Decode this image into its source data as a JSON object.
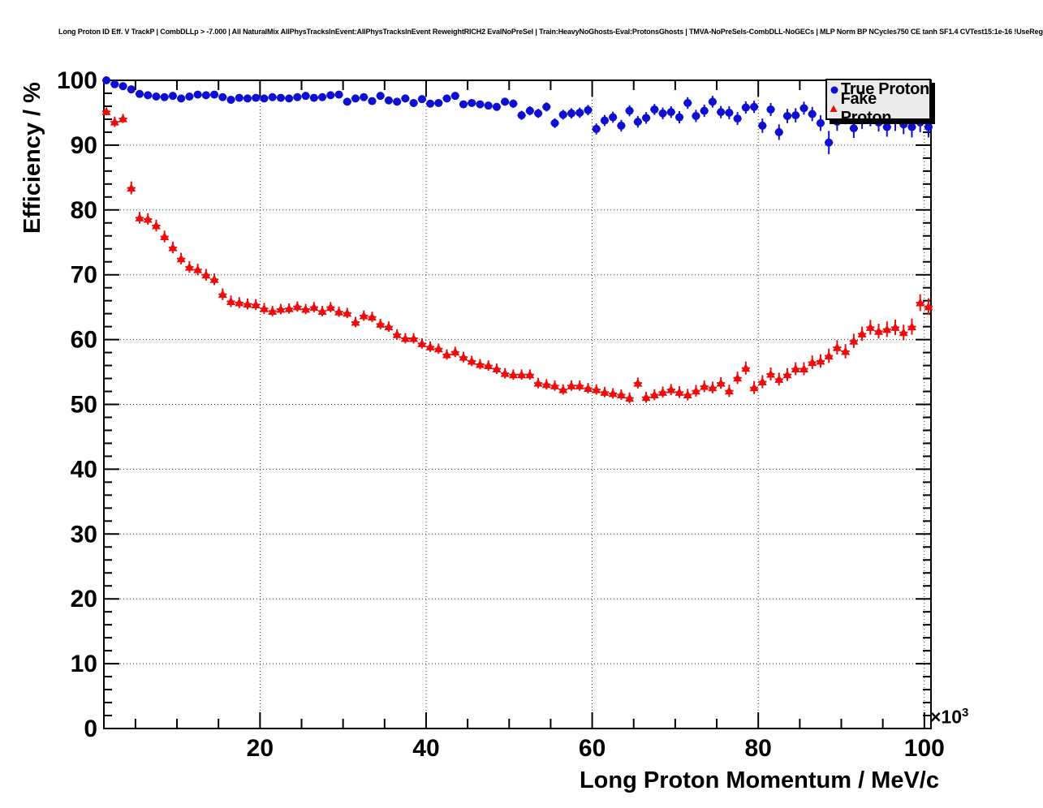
{
  "header": {
    "title": "Long Proton ID Eff. V TrackP | CombDLLp > -7.000 | All NaturalMix AllPhysTracksInEvent:AllPhysTracksInEvent ReweightRICH2 EvalNoPreSel | Train:HeavyNoGhosts-Eval:ProtonsGhosts | TMVA-NoPreSels-CombDLL-NoGECs | MLP Norm BP NCycles750 CE tanh SF1.4 CVTest15:1e-16 !UseReg"
  },
  "legend": {
    "entries": [
      {
        "label": "True Proton",
        "marker": "circle",
        "color": "#0f0fd2"
      },
      {
        "label": "Fake Proton",
        "marker": "triangle",
        "color": "#ed0c0c"
      }
    ]
  },
  "chart_data": {
    "type": "scatter",
    "title": "Long Proton ID Eff. V TrackP",
    "xlabel": "Long Proton Momentum / MeV/c",
    "ylabel": "Efficiency / %",
    "x_scale": {
      "base": "×10",
      "exp": "3"
    },
    "xlim": [
      1.2,
      100.8
    ],
    "ylim": [
      0,
      100
    ],
    "grid": true,
    "legend_position": "top-right",
    "x_major_ticks": [
      {
        "v": 20,
        "label": "20"
      },
      {
        "v": 40,
        "label": "40"
      },
      {
        "v": 60,
        "label": "60"
      },
      {
        "v": 80,
        "label": "80"
      },
      {
        "v": 100,
        "label": "100"
      }
    ],
    "x_minor_step": 5,
    "y_major_ticks": [
      {
        "v": 0,
        "label": "0"
      },
      {
        "v": 10,
        "label": "10"
      },
      {
        "v": 20,
        "label": "20"
      },
      {
        "v": 30,
        "label": "30"
      },
      {
        "v": 40,
        "label": "40"
      },
      {
        "v": 50,
        "label": "50"
      },
      {
        "v": 60,
        "label": "60"
      },
      {
        "v": 70,
        "label": "70"
      },
      {
        "v": 80,
        "label": "80"
      },
      {
        "v": 90,
        "label": "90"
      },
      {
        "v": 100,
        "label": "100"
      }
    ],
    "y_minor_step": 2,
    "xerr": 0.5,
    "x": [
      1.5,
      2.5,
      3.5,
      4.5,
      5.5,
      6.5,
      7.5,
      8.5,
      9.5,
      10.5,
      11.5,
      12.5,
      13.5,
      14.5,
      15.5,
      16.5,
      17.5,
      18.5,
      19.5,
      20.5,
      21.5,
      22.5,
      23.5,
      24.5,
      25.5,
      26.5,
      27.5,
      28.5,
      29.5,
      30.5,
      31.5,
      32.5,
      33.5,
      34.5,
      35.5,
      36.5,
      37.5,
      38.5,
      39.5,
      40.5,
      41.5,
      42.5,
      43.5,
      44.5,
      45.5,
      46.5,
      47.5,
      48.5,
      49.5,
      50.5,
      51.5,
      52.5,
      53.5,
      54.5,
      55.5,
      56.5,
      57.5,
      58.5,
      59.5,
      60.5,
      61.5,
      62.5,
      63.5,
      64.5,
      65.5,
      66.5,
      67.5,
      68.5,
      69.5,
      70.5,
      71.5,
      72.5,
      73.5,
      74.5,
      75.5,
      76.5,
      77.5,
      78.5,
      79.5,
      80.5,
      81.5,
      82.5,
      83.5,
      84.5,
      85.5,
      86.5,
      87.5,
      88.5,
      89.5,
      90.5,
      91.5,
      92.5,
      93.5,
      94.5,
      95.5,
      96.5,
      97.5,
      98.5,
      99.5,
      100.5
    ],
    "series": [
      {
        "name": "True Proton",
        "marker": "circle",
        "color": "#0f0fd2",
        "values": [
          100.0,
          99.4,
          99.1,
          98.6,
          97.9,
          97.7,
          97.5,
          97.4,
          97.6,
          97.2,
          97.5,
          97.8,
          97.7,
          97.8,
          97.4,
          97.0,
          97.3,
          97.2,
          97.3,
          97.2,
          97.4,
          97.3,
          97.2,
          97.4,
          97.6,
          97.3,
          97.4,
          97.7,
          97.8,
          96.7,
          97.2,
          97.4,
          96.8,
          97.6,
          96.9,
          96.7,
          97.2,
          96.5,
          97.1,
          96.4,
          96.5,
          97.2,
          97.6,
          96.3,
          96.5,
          96.3,
          96.1,
          95.9,
          96.7,
          96.4,
          94.6,
          95.3,
          94.9,
          95.9,
          93.4,
          94.7,
          94.9,
          95.0,
          95.4,
          92.5,
          93.8,
          94.3,
          93.0,
          95.3,
          93.6,
          94.2,
          95.5,
          94.9,
          95.1,
          94.3,
          96.5,
          94.5,
          95.3,
          96.7,
          95.1,
          95.0,
          94.1,
          95.8,
          95.9,
          93.0,
          95.5,
          92.0,
          94.5,
          94.6,
          95.7,
          94.8,
          93.4,
          90.4,
          93.6,
          94.4,
          92.6,
          93.8,
          94.2,
          93.5,
          92.8,
          93.9,
          93.2,
          92.8,
          93.5,
          92.8
        ],
        "yerr": [
          0.1,
          0.15,
          0.2,
          0.2,
          0.25,
          0.25,
          0.25,
          0.25,
          0.25,
          0.25,
          0.25,
          0.25,
          0.25,
          0.25,
          0.3,
          0.3,
          0.3,
          0.3,
          0.3,
          0.3,
          0.3,
          0.3,
          0.3,
          0.3,
          0.3,
          0.3,
          0.35,
          0.35,
          0.35,
          0.4,
          0.4,
          0.4,
          0.4,
          0.4,
          0.4,
          0.45,
          0.45,
          0.45,
          0.5,
          0.5,
          0.5,
          0.5,
          0.5,
          0.55,
          0.55,
          0.55,
          0.6,
          0.6,
          0.6,
          0.65,
          0.7,
          0.7,
          0.7,
          0.7,
          0.75,
          0.75,
          0.8,
          0.8,
          0.8,
          0.85,
          0.85,
          0.85,
          0.9,
          0.85,
          0.9,
          0.9,
          0.85,
          0.9,
          0.9,
          0.95,
          0.9,
          0.95,
          0.95,
          0.9,
          0.95,
          1.0,
          1.0,
          0.95,
          0.95,
          1.1,
          1.0,
          1.2,
          1.1,
          1.1,
          1.0,
          1.1,
          1.2,
          1.8,
          1.4,
          1.2,
          1.5,
          1.3,
          1.3,
          1.4,
          1.5,
          1.7,
          1.5,
          1.6,
          1.5,
          1.6
        ]
      },
      {
        "name": "Fake Proton",
        "marker": "triangle",
        "color": "#ed0c0c",
        "values": [
          95.2,
          93.6,
          94.1,
          83.4,
          78.8,
          78.6,
          77.6,
          75.9,
          74.2,
          72.5,
          71.2,
          70.8,
          70.0,
          69.3,
          67.0,
          65.9,
          65.7,
          65.5,
          65.4,
          64.8,
          64.4,
          64.7,
          64.8,
          65.1,
          64.7,
          65.0,
          64.4,
          65.0,
          64.3,
          64.1,
          62.7,
          63.7,
          63.5,
          62.4,
          62.0,
          60.8,
          60.2,
          60.2,
          59.4,
          58.9,
          58.6,
          57.7,
          58.1,
          57.3,
          56.7,
          56.2,
          56.0,
          55.5,
          54.8,
          54.6,
          54.6,
          54.6,
          53.3,
          53.1,
          52.9,
          52.3,
          52.9,
          52.9,
          52.5,
          52.3,
          51.9,
          51.7,
          51.5,
          51.0,
          53.3,
          51.1,
          51.5,
          51.9,
          52.3,
          51.9,
          51.5,
          52.1,
          52.8,
          52.6,
          53.3,
          52.1,
          54.1,
          55.6,
          52.6,
          53.5,
          54.7,
          53.9,
          54.6,
          55.5,
          55.5,
          56.5,
          56.7,
          57.5,
          58.8,
          58.2,
          59.8,
          60.9,
          61.9,
          61.3,
          61.6,
          61.9,
          61.1,
          62.0,
          65.7,
          65.1
        ],
        "yerr": [
          0.6,
          0.8,
          0.7,
          1.0,
          0.9,
          0.9,
          0.9,
          0.9,
          0.9,
          0.9,
          0.9,
          0.9,
          0.9,
          0.9,
          0.9,
          0.9,
          0.85,
          0.85,
          0.85,
          0.85,
          0.8,
          0.8,
          0.8,
          0.8,
          0.8,
          0.8,
          0.8,
          0.8,
          0.8,
          0.8,
          0.8,
          0.8,
          0.8,
          0.8,
          0.8,
          0.8,
          0.8,
          0.8,
          0.8,
          0.8,
          0.8,
          0.8,
          0.8,
          0.8,
          0.8,
          0.8,
          0.8,
          0.8,
          0.8,
          0.8,
          0.8,
          0.8,
          0.8,
          0.8,
          0.8,
          0.8,
          0.8,
          0.8,
          0.8,
          0.8,
          0.8,
          0.8,
          0.8,
          0.85,
          0.85,
          0.85,
          0.85,
          0.85,
          0.85,
          0.9,
          0.9,
          0.9,
          0.9,
          0.9,
          0.9,
          0.95,
          0.95,
          1.0,
          1.0,
          1.0,
          1.0,
          1.0,
          1.0,
          1.0,
          1.0,
          1.05,
          1.05,
          1.1,
          1.1,
          1.1,
          1.1,
          1.1,
          1.15,
          1.15,
          1.2,
          1.2,
          1.2,
          1.25,
          1.3,
          1.3
        ]
      }
    ]
  }
}
